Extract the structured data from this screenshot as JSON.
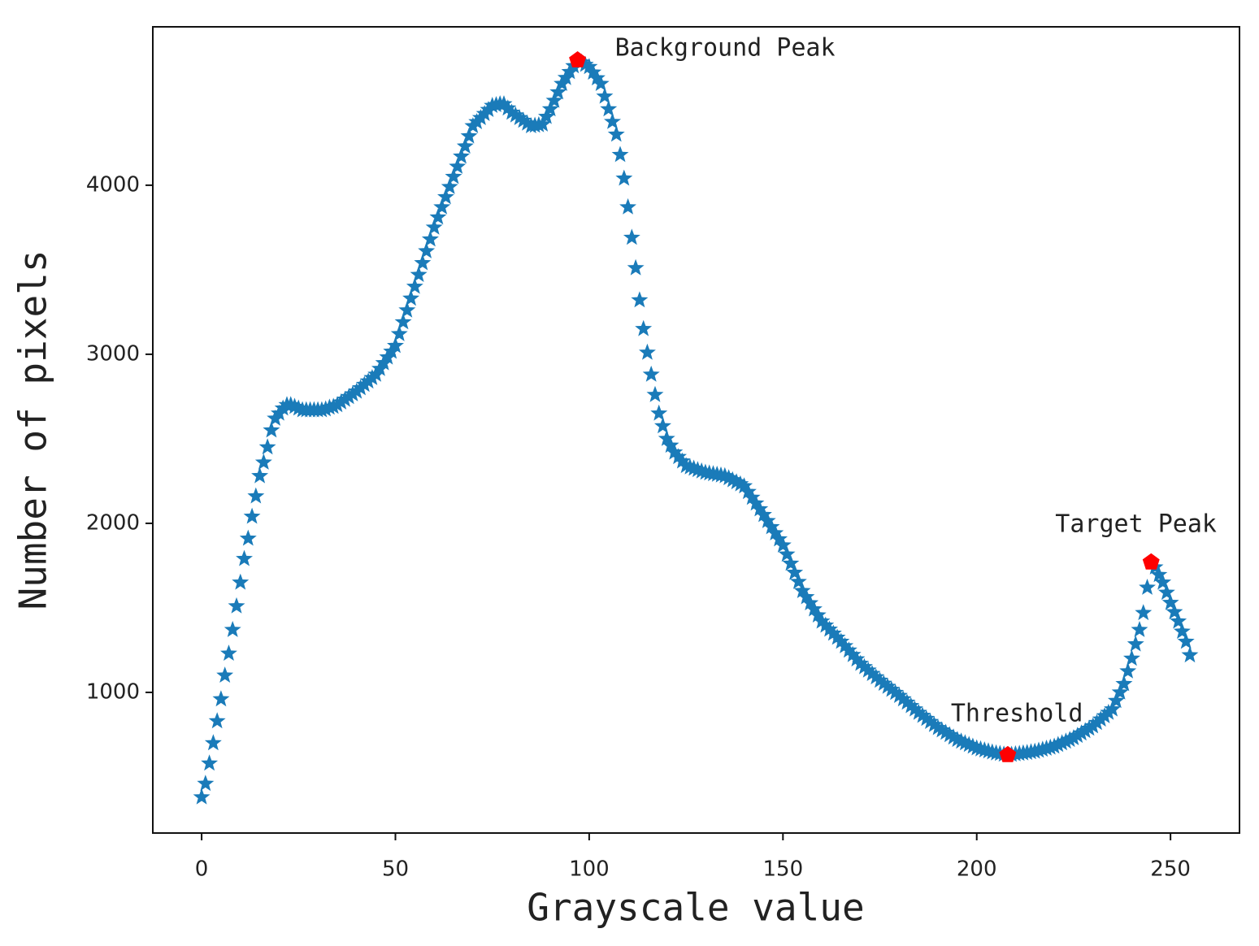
{
  "chart_data": {
    "type": "scatter",
    "xlabel": "Grayscale value",
    "ylabel": "Number of pixels",
    "xlim": [
      -12.6,
      267.8
    ],
    "ylim": [
      168,
      4937
    ],
    "xticks": [
      0,
      50,
      100,
      150,
      200,
      250
    ],
    "yticks": [
      1000,
      2000,
      3000,
      4000
    ],
    "series": [
      {
        "color": "#1a7bb9",
        "marker": "star",
        "x": [
          0,
          1,
          2,
          3,
          4,
          5,
          6,
          7,
          8,
          9,
          10,
          11,
          12,
          13,
          14,
          15,
          16,
          17,
          18,
          19,
          20,
          21,
          22,
          23,
          24,
          25,
          26,
          27,
          28,
          29,
          30,
          31,
          32,
          33,
          34,
          35,
          36,
          37,
          38,
          39,
          40,
          41,
          42,
          43,
          44,
          45,
          46,
          47,
          48,
          49,
          50,
          51,
          52,
          53,
          54,
          55,
          56,
          57,
          58,
          59,
          60,
          61,
          62,
          63,
          64,
          65,
          66,
          67,
          68,
          69,
          70,
          71,
          72,
          73,
          74,
          75,
          76,
          77,
          78,
          79,
          80,
          81,
          82,
          83,
          84,
          85,
          86,
          87,
          88,
          89,
          90,
          91,
          92,
          93,
          94,
          95,
          96,
          97,
          98,
          99,
          100,
          101,
          102,
          103,
          104,
          105,
          106,
          107,
          108,
          109,
          110,
          111,
          112,
          113,
          114,
          115,
          116,
          117,
          118,
          119,
          120,
          121,
          122,
          123,
          124,
          125,
          126,
          127,
          128,
          129,
          130,
          131,
          132,
          133,
          134,
          135,
          136,
          137,
          138,
          139,
          140,
          141,
          142,
          143,
          144,
          145,
          146,
          147,
          148,
          149,
          150,
          151,
          152,
          153,
          154,
          155,
          156,
          157,
          158,
          159,
          160,
          161,
          162,
          163,
          164,
          165,
          166,
          167,
          168,
          169,
          170,
          171,
          172,
          173,
          174,
          175,
          176,
          177,
          178,
          179,
          180,
          181,
          182,
          183,
          184,
          185,
          186,
          187,
          188,
          189,
          190,
          191,
          192,
          193,
          194,
          195,
          196,
          197,
          198,
          199,
          200,
          201,
          202,
          203,
          204,
          205,
          206,
          207,
          208,
          209,
          210,
          211,
          212,
          213,
          214,
          215,
          216,
          217,
          218,
          219,
          220,
          221,
          222,
          223,
          224,
          225,
          226,
          227,
          228,
          229,
          230,
          231,
          232,
          233,
          234,
          235,
          236,
          237,
          238,
          239,
          240,
          241,
          242,
          243,
          244,
          245,
          246,
          247,
          248,
          249,
          250,
          251,
          252,
          253,
          254,
          255
        ],
        "values": [
          380,
          460,
          580,
          700,
          830,
          960,
          1100,
          1230,
          1370,
          1510,
          1650,
          1790,
          1910,
          2040,
          2160,
          2280,
          2360,
          2450,
          2550,
          2620,
          2650,
          2680,
          2700,
          2700,
          2690,
          2680,
          2670,
          2670,
          2670,
          2670,
          2670,
          2670,
          2675,
          2685,
          2690,
          2700,
          2716,
          2732,
          2748,
          2764,
          2780,
          2800,
          2820,
          2840,
          2860,
          2880,
          2914,
          2948,
          2982,
          3016,
          3050,
          3120,
          3190,
          3260,
          3330,
          3400,
          3470,
          3540,
          3610,
          3680,
          3750,
          3810,
          3870,
          3930,
          3990,
          4050,
          4110,
          4170,
          4230,
          4290,
          4350,
          4374,
          4398,
          4422,
          4446,
          4470,
          4475,
          4480,
          4480,
          4455,
          4430,
          4414,
          4398,
          4382,
          4366,
          4350,
          4353,
          4356,
          4360,
          4405,
          4450,
          4500,
          4550,
          4600,
          4635,
          4670,
          4705,
          4740,
          4727,
          4713,
          4700,
          4667,
          4633,
          4600,
          4525,
          4450,
          4375,
          4300,
          4180,
          4040,
          3870,
          3690,
          3510,
          3320,
          3150,
          3010,
          2880,
          2760,
          2650,
          2575,
          2500,
          2460,
          2420,
          2393,
          2367,
          2340,
          2332,
          2324,
          2316,
          2308,
          2300,
          2296,
          2292,
          2288,
          2284,
          2280,
          2268,
          2256,
          2244,
          2232,
          2220,
          2186,
          2152,
          2118,
          2084,
          2050,
          2014,
          1978,
          1942,
          1906,
          1870,
          1816,
          1762,
          1708,
          1654,
          1600,
          1564,
          1528,
          1492,
          1456,
          1420,
          1396,
          1372,
          1348,
          1324,
          1300,
          1274,
          1248,
          1222,
          1196,
          1170,
          1150,
          1130,
          1110,
          1090,
          1070,
          1052,
          1034,
          1016,
          998,
          980,
          960,
          940,
          920,
          900,
          880,
          862,
          844,
          826,
          808,
          790,
          776,
          762,
          748,
          734,
          720,
          710,
          700,
          690,
          680,
          670,
          664,
          658,
          652,
          646,
          640,
          637,
          633,
          630,
          632,
          635,
          637,
          640,
          643,
          647,
          650,
          656,
          662,
          668,
          674,
          680,
          690,
          700,
          710,
          720,
          730,
          744,
          758,
          772,
          786,
          800,
          820,
          840,
          860,
          880,
          900,
          950,
          1000,
          1050,
          1125,
          1200,
          1285,
          1370,
          1470,
          1620,
          1770,
          1740,
          1695,
          1650,
          1590,
          1530,
          1475,
          1420,
          1360,
          1300,
          1220
        ]
      }
    ],
    "annotations": [
      {
        "text": "Background Peak",
        "x": 97,
        "y": 4740,
        "color": "#ff0000",
        "position": "above-right"
      },
      {
        "text": "Threshold",
        "x": 208,
        "y": 630,
        "color": "#ff0000",
        "position": "above-left"
      },
      {
        "text": "Target Peak",
        "x": 245,
        "y": 1770,
        "color": "#ff0000",
        "position": "above"
      }
    ]
  }
}
